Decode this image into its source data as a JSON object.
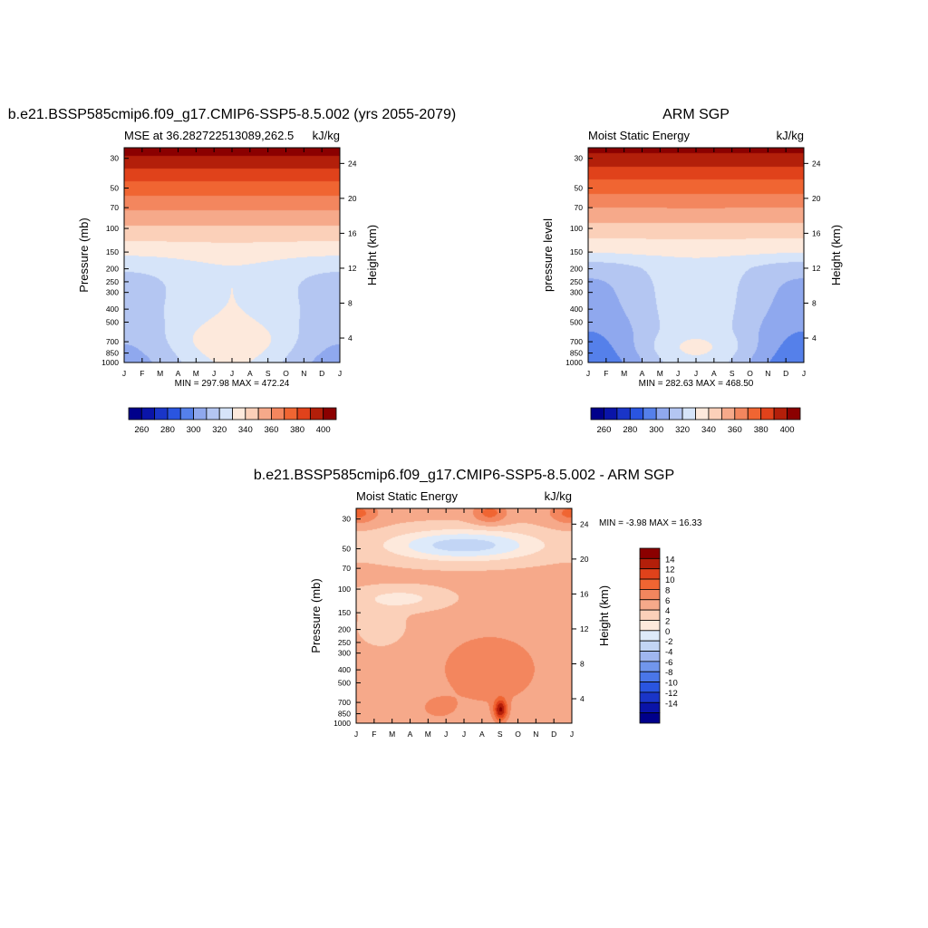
{
  "colors": {
    "mse_levels": [
      "#00008b",
      "#0a14a8",
      "#1a35c8",
      "#2a55e0",
      "#5580ea",
      "#8fa8ee",
      "#b4c6f2",
      "#d6e4f9",
      "#fde9dc",
      "#fbd0b9",
      "#f6a98a",
      "#f3865e",
      "#f06532",
      "#e0421b",
      "#b31f0a",
      "#8b0000"
    ],
    "diff_levels": [
      "#00008b",
      "#0a14a8",
      "#1a35c8",
      "#2a55e0",
      "#4a76e8",
      "#7196ec",
      "#9fb6f0",
      "#c2d5f5",
      "#ddeafa",
      "#fde9dc",
      "#fbd0b9",
      "#f6a98a",
      "#f3865e",
      "#f06532",
      "#e0421b",
      "#b31f0a",
      "#8b0000"
    ]
  },
  "chart_data": [
    {
      "type": "contour",
      "title": "b.e21.BSSP585cmip6.f09_g17.CMIP6-SSP5-8.5.002 (yrs 2055-2079)",
      "left_string": "MSE at 36.282722513089,262.5",
      "right_string": "kJ/kg",
      "ylabel": "Pressure (mb)",
      "y2label": "Height (km)",
      "x_ticks": [
        "J",
        "F",
        "M",
        "A",
        "M",
        "J",
        "J",
        "A",
        "S",
        "O",
        "N",
        "D",
        "J"
      ],
      "y_ticks": [
        30,
        50,
        70,
        100,
        150,
        200,
        250,
        300,
        400,
        500,
        700,
        850,
        1000
      ],
      "y2_ticks": [
        24,
        20,
        16,
        12,
        8,
        4
      ],
      "stats": "MIN = 297.98 MAX = 472.24",
      "colorbar_labels": [
        "260",
        "280",
        "300",
        "320",
        "340",
        "360",
        "380",
        "400"
      ]
    },
    {
      "type": "contour",
      "title": "ARM SGP",
      "left_string": "Moist Static Energy",
      "right_string": "kJ/kg",
      "ylabel": "pressure level",
      "y2label": "Height (km)",
      "x_ticks": [
        "J",
        "F",
        "M",
        "A",
        "M",
        "J",
        "J",
        "A",
        "S",
        "O",
        "N",
        "D",
        "J"
      ],
      "y_ticks": [
        30,
        50,
        70,
        100,
        150,
        200,
        250,
        300,
        400,
        500,
        700,
        850,
        1000
      ],
      "y2_ticks": [
        24,
        20,
        16,
        12,
        8,
        4
      ],
      "stats": "MIN = 282.63 MAX = 468.50",
      "colorbar_labels": [
        "260",
        "280",
        "300",
        "320",
        "340",
        "360",
        "380",
        "400"
      ]
    },
    {
      "type": "contour",
      "title": "b.e21.BSSP585cmip6.f09_g17.CMIP6-SSP5-8.5.002 - ARM SGP",
      "left_string": "Moist Static Energy",
      "right_string": "kJ/kg",
      "ylabel": "Pressure (mb)",
      "y2label": "Height (km)",
      "x_ticks": [
        "J",
        "F",
        "M",
        "A",
        "M",
        "J",
        "J",
        "A",
        "S",
        "O",
        "N",
        "D",
        "J"
      ],
      "y_ticks": [
        30,
        50,
        70,
        100,
        150,
        200,
        250,
        300,
        400,
        500,
        700,
        850,
        1000
      ],
      "y2_ticks": [
        24,
        20,
        16,
        12,
        8,
        4
      ],
      "stats": "MIN =  -3.98 MAX =  16.33",
      "colorbar_labels": [
        "14",
        "12",
        "10",
        "8",
        "6",
        "4",
        "2",
        "0",
        "-2",
        "-4",
        "-6",
        "-8",
        "-10",
        "-12",
        "-14"
      ]
    }
  ]
}
